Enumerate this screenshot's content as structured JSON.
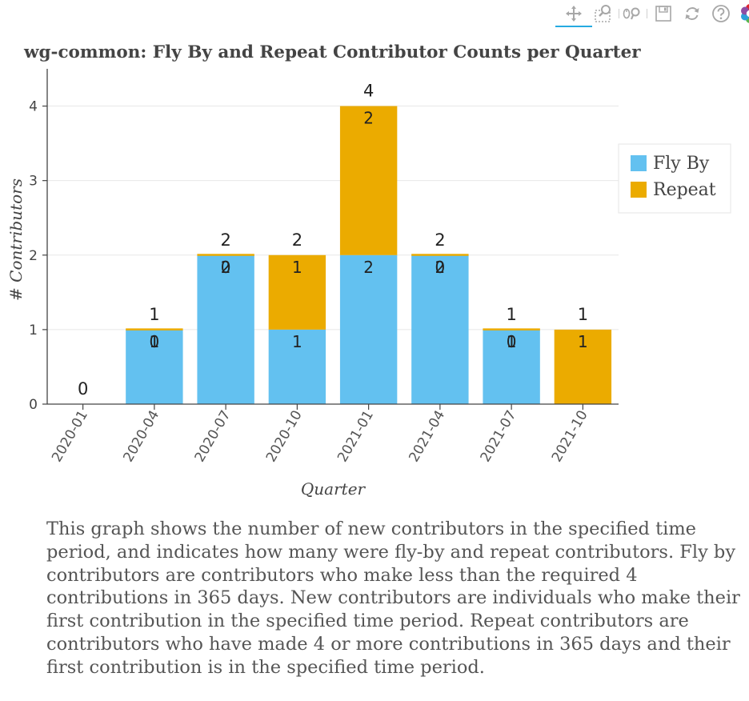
{
  "toolbar": {
    "tools": [
      {
        "name": "pan-tool",
        "icon": "pan-icon",
        "active": true
      },
      {
        "name": "box-zoom-tool",
        "icon": "box-zoom-icon",
        "active": false
      },
      {
        "name": "wheel-zoom-tool",
        "icon": "wheel-zoom-icon",
        "active": false
      },
      {
        "name": "save-tool",
        "icon": "save-icon",
        "active": false
      },
      {
        "name": "reset-tool",
        "icon": "reset-icon",
        "active": false
      },
      {
        "name": "help-tool",
        "icon": "help-icon",
        "active": false
      },
      {
        "name": "bokeh-logo",
        "icon": "bokeh-logo-icon",
        "active": false
      }
    ],
    "active_color": "#26aae1",
    "icon_color": "#a7a7a7"
  },
  "chart_data": {
    "type": "bar",
    "stacked": true,
    "title": "wg-common: Fly By and Repeat Contributor Counts per Quarter",
    "xlabel": "Quarter",
    "ylabel": "# Contributors",
    "categories": [
      "2020-01",
      "2020-04",
      "2020-07",
      "2020-10",
      "2021-01",
      "2021-04",
      "2021-07",
      "2021-10"
    ],
    "series": [
      {
        "name": "Fly By",
        "color": "#63c1f0",
        "values": [
          0,
          1,
          2,
          1,
          2,
          2,
          1,
          0
        ]
      },
      {
        "name": "Repeat",
        "color": "#ebab00",
        "values": [
          0,
          0,
          0,
          1,
          2,
          0,
          0,
          1
        ]
      }
    ],
    "totals": [
      0,
      1,
      2,
      2,
      4,
      2,
      1,
      1
    ],
    "ylim": [
      0,
      4.5
    ],
    "yticks": [
      0,
      1,
      2,
      3,
      4
    ],
    "grid": true,
    "legend_position": "right"
  },
  "description": "This graph shows the number of new contributors in the specified time period, and indicates how many were fly-by and repeat contributors. Fly by contributors are contributors who make less than the required 4 contributions in 365 days. New contributors are individuals who make their first contribution in the specified time period. Repeat contributors are contributors who have made 4 or more contributions in 365 days and their first contribution is in the specified time period."
}
